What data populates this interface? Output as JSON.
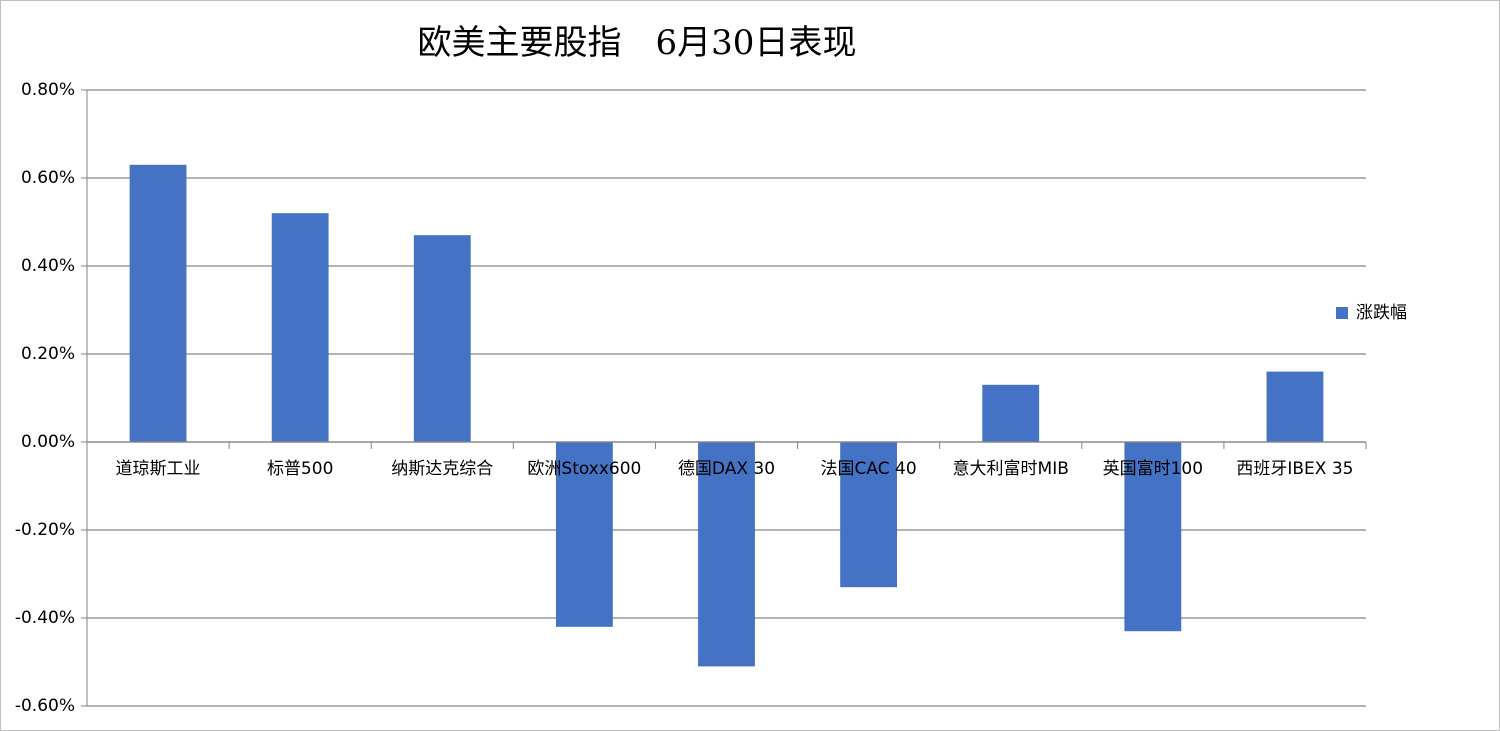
{
  "chart_data": {
    "type": "bar",
    "title": "欧美主要股指　6月30日表现",
    "categories": [
      "道琼斯工业",
      "标普500",
      "纳斯达克综合",
      "欧洲Stoxx600",
      "德国DAX 30",
      "法国CAC 40",
      "意大利富时MIB",
      "英国富时100",
      "西班牙IBEX 35"
    ],
    "series": [
      {
        "name": "涨跌幅",
        "color": "#4472c4",
        "values": [
          0.63,
          0.52,
          0.47,
          -0.42,
          -0.51,
          -0.33,
          0.13,
          -0.43,
          0.16
        ]
      }
    ],
    "ylim": [
      -0.6,
      0.8
    ],
    "yticks": [
      {
        "value": -0.6,
        "label": "-0.60%"
      },
      {
        "value": -0.4,
        "label": "-0.40%"
      },
      {
        "value": -0.2,
        "label": "-0.20%"
      },
      {
        "value": 0,
        "label": "0.00%"
      },
      {
        "value": 0.2,
        "label": "0.20%"
      },
      {
        "value": 0.4,
        "label": "0.40%"
      },
      {
        "value": 0.6,
        "label": "0.60%"
      },
      {
        "value": 0.8,
        "label": "0.80%"
      }
    ],
    "grid": true,
    "legend": "right"
  }
}
